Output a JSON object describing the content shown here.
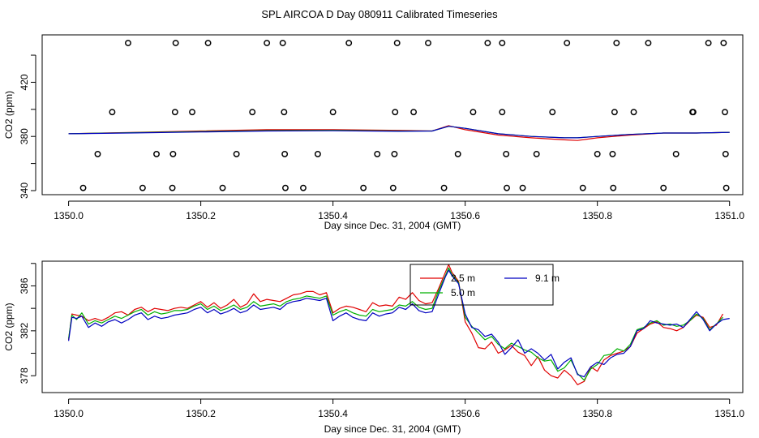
{
  "figure_title": "SPL AIRCOA D  Day 080911  Calibrated Timeseries",
  "chart_data": [
    {
      "type": "scatter+line",
      "title": "",
      "xlabel": "Day since Dec. 31, 2004 (GMT)",
      "ylabel": "CO2 (ppm)",
      "xlim": [
        1349.96,
        1351.02
      ],
      "ylim": [
        337,
        455
      ],
      "xticks": [
        1350.0,
        1350.2,
        1350.4,
        1350.6,
        1350.8,
        1351.0
      ],
      "xtick_labels": [
        "1350.0",
        "1350.2",
        "1350.4",
        "1350.6",
        "1350.8",
        "1351.0"
      ],
      "yticks": [
        340,
        380,
        420
      ],
      "ytick_labels": [
        "340",
        "380",
        "420"
      ],
      "yticks_minor": [
        360,
        400,
        440
      ],
      "calibration_points": {
        "marker": "open-circle",
        "levels": [
          {
            "y": 449,
            "x": [
              1350.09,
              1350.162,
              1350.211,
              1350.3,
              1350.324,
              1350.424,
              1350.497,
              1350.544,
              1350.634,
              1350.656,
              1350.754,
              1350.829,
              1350.877,
              1350.968,
              1350.991
            ]
          },
          {
            "y": 398,
            "x": [
              1350.066,
              1350.161,
              1350.187,
              1350.278,
              1350.326,
              1350.4,
              1350.494,
              1350.522,
              1350.612,
              1350.656,
              1350.732,
              1350.826,
              1350.855,
              1350.944,
              1350.945,
              1350.993
            ]
          },
          {
            "y": 367,
            "x": [
              1350.044,
              1350.133,
              1350.158,
              1350.254,
              1350.327,
              1350.377,
              1350.467,
              1350.493,
              1350.589,
              1350.662,
              1350.708,
              1350.8,
              1350.823,
              1350.919,
              1350.994
            ]
          },
          {
            "y": 342,
            "x": [
              1350.022,
              1350.112,
              1350.157,
              1350.233,
              1350.328,
              1350.355,
              1350.446,
              1350.491,
              1350.568,
              1350.663,
              1350.687,
              1350.778,
              1350.824,
              1350.9,
              1350.995
            ]
          }
        ]
      },
      "series": [
        {
          "name": "2.5 m",
          "color": "#e00000",
          "x": [
            1350.0,
            1350.1,
            1350.2,
            1350.3,
            1350.4,
            1350.5,
            1350.55,
            1350.575,
            1350.6,
            1350.65,
            1350.7,
            1350.75,
            1350.77,
            1350.8,
            1350.85,
            1350.9,
            1350.95,
            1351.0
          ],
          "y": [
            382,
            383,
            384,
            385,
            385,
            384.5,
            384,
            388,
            385,
            381,
            379,
            377.5,
            377,
            379,
            381,
            382.5,
            382.5,
            383
          ]
        },
        {
          "name": "5.0 m",
          "color": "#00b000",
          "x": [
            1350.0,
            1350.1,
            1350.2,
            1350.3,
            1350.4,
            1350.5,
            1350.55,
            1350.575,
            1350.6,
            1350.65,
            1350.7,
            1350.75,
            1350.77,
            1350.8,
            1350.85,
            1350.9,
            1350.95,
            1351.0
          ],
          "y": [
            382,
            382.8,
            383.6,
            384.3,
            384.5,
            384,
            384,
            387.5,
            386,
            382,
            380,
            379,
            379,
            380,
            381.5,
            382.5,
            382.5,
            383
          ]
        },
        {
          "name": "9.1 m",
          "color": "#0000c0",
          "x": [
            1350.0,
            1350.1,
            1350.2,
            1350.3,
            1350.4,
            1350.5,
            1350.55,
            1350.575,
            1350.6,
            1350.65,
            1350.7,
            1350.75,
            1350.77,
            1350.8,
            1350.85,
            1350.9,
            1350.95,
            1351.0
          ],
          "y": [
            382,
            382.6,
            383.3,
            384,
            384.2,
            383.8,
            384,
            387.5,
            386,
            382,
            380,
            379,
            379,
            380,
            381.5,
            382.5,
            382.5,
            383
          ]
        }
      ]
    },
    {
      "type": "line",
      "title": "",
      "xlabel": "Day since Dec. 31, 2004 (GMT)",
      "ylabel": "CO2 (ppm)",
      "xlim": [
        1349.96,
        1351.02
      ],
      "ylim": [
        376.5,
        388.2
      ],
      "xticks": [
        1350.0,
        1350.2,
        1350.4,
        1350.6,
        1350.8,
        1351.0
      ],
      "xtick_labels": [
        "1350.0",
        "1350.2",
        "1350.4",
        "1350.6",
        "1350.8",
        "1351.0"
      ],
      "yticks": [
        378,
        382,
        386
      ],
      "ytick_labels": [
        "378",
        "382",
        "386"
      ],
      "yticks_minor": [
        380,
        384,
        388
      ],
      "legend": {
        "position": "top-center",
        "entries": [
          "2.5 m",
          "9.1 m",
          "5.0 m"
        ]
      },
      "series": [
        {
          "name": "2.5 m",
          "color": "#e00000",
          "x": [
            1350.0,
            1350.005,
            1350.012,
            1350.02,
            1350.03,
            1350.04,
            1350.05,
            1350.06,
            1350.07,
            1350.08,
            1350.09,
            1350.1,
            1350.11,
            1350.12,
            1350.13,
            1350.14,
            1350.15,
            1350.16,
            1350.17,
            1350.18,
            1350.19,
            1350.2,
            1350.21,
            1350.22,
            1350.23,
            1350.24,
            1350.25,
            1350.26,
            1350.27,
            1350.28,
            1350.29,
            1350.3,
            1350.31,
            1350.32,
            1350.33,
            1350.34,
            1350.35,
            1350.36,
            1350.37,
            1350.38,
            1350.39,
            1350.4,
            1350.41,
            1350.42,
            1350.43,
            1350.44,
            1350.45,
            1350.46,
            1350.47,
            1350.48,
            1350.49,
            1350.5,
            1350.51,
            1350.52,
            1350.53,
            1350.54,
            1350.55,
            1350.56,
            1350.57,
            1350.575,
            1350.58,
            1350.59,
            1350.6,
            1350.61,
            1350.62,
            1350.63,
            1350.64,
            1350.65,
            1350.66,
            1350.67,
            1350.68,
            1350.69,
            1350.7,
            1350.71,
            1350.72,
            1350.73,
            1350.74,
            1350.75,
            1350.76,
            1350.77,
            1350.78,
            1350.79,
            1350.8,
            1350.81,
            1350.82,
            1350.83,
            1350.84,
            1350.85,
            1350.86,
            1350.87,
            1350.88,
            1350.89,
            1350.9,
            1350.91,
            1350.92,
            1350.93,
            1350.94,
            1350.95,
            1350.96,
            1350.97,
            1350.98,
            1350.99
          ],
          "y": [
            381.2,
            383.5,
            383.4,
            383.3,
            382.9,
            383.1,
            382.9,
            383.2,
            383.6,
            383.7,
            383.4,
            383.9,
            384.1,
            383.7,
            384.0,
            383.9,
            383.8,
            384.0,
            384.1,
            384.0,
            384.3,
            384.6,
            384.1,
            384.5,
            384.0,
            384.3,
            384.8,
            384.1,
            384.4,
            385.3,
            384.6,
            384.8,
            384.7,
            384.6,
            384.9,
            385.2,
            385.3,
            385.5,
            385.5,
            385.2,
            385.4,
            383.6,
            384.0,
            384.2,
            384.1,
            383.9,
            383.7,
            384.5,
            384.2,
            384.3,
            384.2,
            385.0,
            384.8,
            385.4,
            384.7,
            384.4,
            384.5,
            385.8,
            387.2,
            387.9,
            387.2,
            386.4,
            382.8,
            381.8,
            380.5,
            380.4,
            381.0,
            380.0,
            380.3,
            380.7,
            380.1,
            379.8,
            378.9,
            379.7,
            378.5,
            378.0,
            377.8,
            378.5,
            378.0,
            377.2,
            377.5,
            378.8,
            378.4,
            379.4,
            379.8,
            380.0,
            380.2,
            380.6,
            381.8,
            382.2,
            382.6,
            382.8,
            382.3,
            382.2,
            382.0,
            382.3,
            382.9,
            383.4,
            383.2,
            382.3,
            382.5,
            383.5
          ]
        },
        {
          "name": "5.0 m",
          "color": "#00b000",
          "x": [
            1350.0,
            1350.005,
            1350.012,
            1350.02,
            1350.03,
            1350.04,
            1350.05,
            1350.06,
            1350.07,
            1350.08,
            1350.09,
            1350.1,
            1350.11,
            1350.12,
            1350.13,
            1350.14,
            1350.15,
            1350.16,
            1350.17,
            1350.18,
            1350.19,
            1350.2,
            1350.21,
            1350.22,
            1350.23,
            1350.24,
            1350.25,
            1350.26,
            1350.27,
            1350.28,
            1350.29,
            1350.3,
            1350.31,
            1350.32,
            1350.33,
            1350.34,
            1350.35,
            1350.36,
            1350.37,
            1350.38,
            1350.39,
            1350.4,
            1350.41,
            1350.42,
            1350.43,
            1350.44,
            1350.45,
            1350.46,
            1350.47,
            1350.48,
            1350.49,
            1350.5,
            1350.51,
            1350.52,
            1350.53,
            1350.54,
            1350.55,
            1350.56,
            1350.57,
            1350.575,
            1350.58,
            1350.59,
            1350.6,
            1350.61,
            1350.62,
            1350.63,
            1350.64,
            1350.65,
            1350.66,
            1350.67,
            1350.68,
            1350.69,
            1350.7,
            1350.71,
            1350.72,
            1350.73,
            1350.74,
            1350.75,
            1350.76,
            1350.77,
            1350.78,
            1350.79,
            1350.8,
            1350.81,
            1350.82,
            1350.83,
            1350.84,
            1350.85,
            1350.86,
            1350.87,
            1350.88,
            1350.89,
            1350.9,
            1350.91,
            1350.92,
            1350.93,
            1350.94,
            1350.95,
            1350.96,
            1350.97,
            1350.98,
            1350.99
          ],
          "y": [
            381.3,
            383.4,
            383.0,
            383.6,
            382.6,
            382.9,
            382.7,
            383.0,
            383.3,
            383.1,
            383.4,
            383.7,
            383.9,
            383.4,
            383.7,
            383.5,
            383.6,
            383.8,
            383.8,
            383.9,
            384.2,
            384.4,
            383.9,
            384.2,
            383.8,
            384.0,
            384.3,
            383.9,
            384.1,
            384.6,
            384.2,
            384.3,
            384.4,
            384.2,
            384.6,
            384.8,
            384.9,
            385.1,
            385.0,
            384.9,
            385.1,
            383.4,
            383.7,
            383.9,
            383.6,
            383.4,
            383.3,
            383.9,
            383.7,
            383.8,
            383.9,
            384.3,
            384.2,
            384.6,
            384.1,
            383.9,
            384.0,
            385.6,
            386.9,
            387.6,
            387.0,
            386.3,
            383.2,
            382.4,
            381.8,
            381.2,
            381.5,
            380.8,
            380.4,
            380.9,
            380.6,
            380.3,
            380.1,
            379.6,
            379.3,
            379.4,
            378.4,
            378.7,
            379.4,
            378.2,
            377.6,
            378.6,
            379.0,
            379.8,
            379.9,
            380.4,
            380.2,
            380.8,
            382.1,
            382.3,
            382.7,
            382.9,
            382.5,
            382.6,
            382.4,
            382.5,
            382.9,
            383.5,
            383.1,
            382.1,
            382.6,
            383.2
          ]
        },
        {
          "name": "9.1 m",
          "color": "#0000c0",
          "x": [
            1350.0,
            1350.005,
            1350.012,
            1350.02,
            1350.03,
            1350.04,
            1350.05,
            1350.06,
            1350.07,
            1350.08,
            1350.09,
            1350.1,
            1350.11,
            1350.12,
            1350.13,
            1350.14,
            1350.15,
            1350.16,
            1350.17,
            1350.18,
            1350.19,
            1350.2,
            1350.21,
            1350.22,
            1350.23,
            1350.24,
            1350.25,
            1350.26,
            1350.27,
            1350.28,
            1350.29,
            1350.3,
            1350.31,
            1350.32,
            1350.33,
            1350.34,
            1350.35,
            1350.36,
            1350.37,
            1350.38,
            1350.39,
            1350.4,
            1350.41,
            1350.42,
            1350.43,
            1350.44,
            1350.45,
            1350.46,
            1350.47,
            1350.48,
            1350.49,
            1350.5,
            1350.51,
            1350.52,
            1350.53,
            1350.54,
            1350.55,
            1350.56,
            1350.57,
            1350.575,
            1350.58,
            1350.59,
            1350.6,
            1350.61,
            1350.62,
            1350.63,
            1350.64,
            1350.65,
            1350.66,
            1350.67,
            1350.68,
            1350.69,
            1350.7,
            1350.71,
            1350.72,
            1350.73,
            1350.74,
            1350.75,
            1350.76,
            1350.77,
            1350.78,
            1350.79,
            1350.8,
            1350.81,
            1350.82,
            1350.83,
            1350.84,
            1350.85,
            1350.86,
            1350.87,
            1350.88,
            1350.89,
            1350.9,
            1350.91,
            1350.92,
            1350.93,
            1350.94,
            1350.95,
            1350.96,
            1350.97,
            1350.98,
            1350.99,
            1351.0
          ],
          "y": [
            381.1,
            383.2,
            383.1,
            383.3,
            382.3,
            382.7,
            382.4,
            382.8,
            383.0,
            382.7,
            383.0,
            383.4,
            383.6,
            383.0,
            383.3,
            383.1,
            383.2,
            383.4,
            383.5,
            383.6,
            383.9,
            384.1,
            383.6,
            383.9,
            383.5,
            383.7,
            384.0,
            383.6,
            383.8,
            384.3,
            383.9,
            384.0,
            384.1,
            383.9,
            384.4,
            384.6,
            384.7,
            384.9,
            384.8,
            384.7,
            384.9,
            382.9,
            383.3,
            383.6,
            383.2,
            383.0,
            382.9,
            383.6,
            383.3,
            383.5,
            383.6,
            384.1,
            383.9,
            384.4,
            383.8,
            383.6,
            383.7,
            385.3,
            386.8,
            387.4,
            386.9,
            386.2,
            383.5,
            382.3,
            382.1,
            381.5,
            381.7,
            381.0,
            379.9,
            380.5,
            381.2,
            380.0,
            380.4,
            380.0,
            379.4,
            379.9,
            378.6,
            379.2,
            379.6,
            378.1,
            377.9,
            378.8,
            379.2,
            379.0,
            379.6,
            379.9,
            380.0,
            380.6,
            382.0,
            382.2,
            382.9,
            382.7,
            382.6,
            382.5,
            382.6,
            382.3,
            383.0,
            383.7,
            383.0,
            382.0,
            382.6,
            383.0,
            383.1
          ]
        }
      ]
    }
  ]
}
